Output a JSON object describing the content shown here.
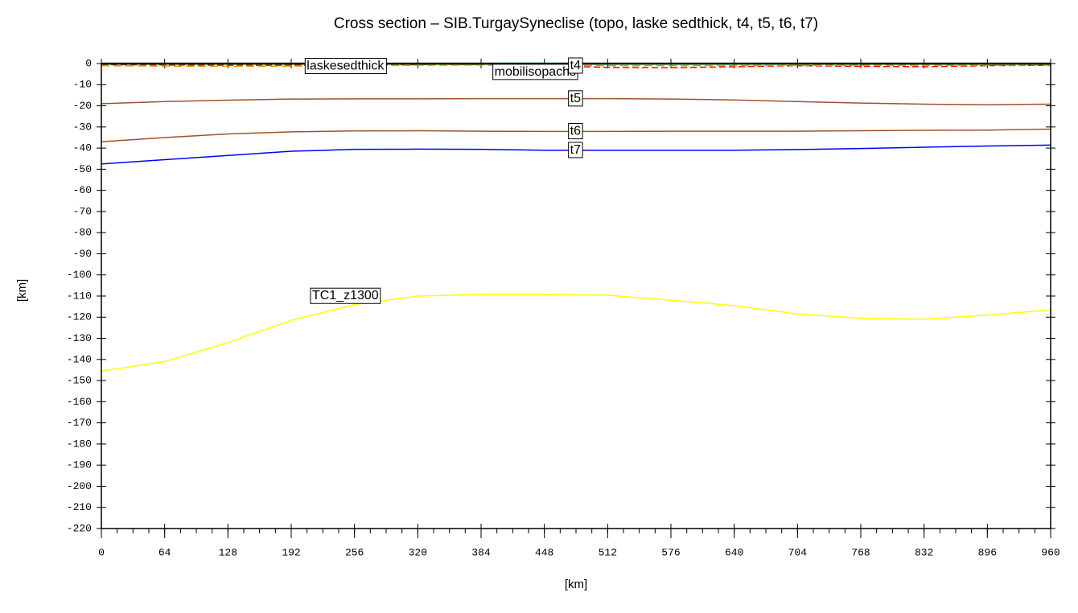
{
  "chart_data": {
    "type": "line",
    "title": "Cross section – SIB.TurgaySyneclise (topo, laske sedthick, t4, t5, t6, t7)",
    "xlabel": "[km]",
    "ylabel": "[km]",
    "x": [
      0,
      64,
      128,
      192,
      256,
      320,
      384,
      448,
      512,
      576,
      640,
      704,
      768,
      832,
      896,
      960
    ],
    "xlim": [
      0,
      960
    ],
    "ylim": [
      -220,
      0
    ],
    "xticks": [
      0,
      64,
      128,
      192,
      256,
      320,
      384,
      448,
      512,
      576,
      640,
      704,
      768,
      832,
      896,
      960
    ],
    "yticks": [
      0,
      -10,
      -20,
      -30,
      -40,
      -50,
      -60,
      -70,
      -80,
      -90,
      -100,
      -110,
      -120,
      -130,
      -140,
      -150,
      -160,
      -170,
      -180,
      -190,
      -200,
      -210,
      -220
    ],
    "series": [
      {
        "color": "#008000",
        "values": [
          0.2,
          0.2,
          0.2,
          0.2,
          0.2,
          0.2,
          0.2,
          0.2,
          0.2,
          0.2,
          0.2,
          0.2,
          0.2,
          0.2,
          0.2,
          0.2
        ]
      },
      {
        "name": "laskesedthick",
        "color": "#ff0000",
        "values": [
          -0.5,
          -0.7,
          -0.8,
          -0.8,
          -0.7,
          -0.5,
          -0.4,
          -1,
          -1.8,
          -2,
          -1.5,
          -1,
          -1.3,
          -1.5,
          -1,
          -0.8
        ]
      },
      {
        "name": "mobilisopachs",
        "color": "#ff8c00",
        "values": [
          -1,
          -1.2,
          -1.3,
          -1.2,
          -1,
          -0.8,
          -0.7,
          -0.8,
          -1,
          -1,
          -1,
          -0.9,
          -0.8,
          -0.8,
          -0.8,
          -0.7
        ]
      },
      {
        "name": "t4",
        "color": "#006400",
        "values": [
          -0.3,
          -0.3,
          -0.3,
          -0.3,
          -0.3,
          -0.3,
          -0.3,
          -0.3,
          -0.3,
          -0.3,
          -0.3,
          -0.3,
          -0.3,
          -0.3,
          -0.3,
          -0.3
        ]
      },
      {
        "name": "t5",
        "color": "#a0522d",
        "values": [
          -19,
          -18,
          -17.3,
          -16.8,
          -16.7,
          -16.7,
          -16.6,
          -16.6,
          -16.6,
          -16.8,
          -17.2,
          -18,
          -18.7,
          -19.2,
          -19.5,
          -19.2
        ]
      },
      {
        "name": "t6",
        "color": "#a0522d",
        "values": [
          -37,
          -35,
          -33.3,
          -32.3,
          -31.9,
          -31.8,
          -32,
          -32.1,
          -32.1,
          -32,
          -32,
          -32,
          -31.8,
          -31.6,
          -31.5,
          -31
        ]
      },
      {
        "name": "t7",
        "color": "#0000ff",
        "values": [
          -47.5,
          -45.5,
          -43.5,
          -41.5,
          -40.6,
          -40.5,
          -40.6,
          -41,
          -41,
          -41,
          -41,
          -40.7,
          -40.2,
          -39.6,
          -39,
          -38.6
        ]
      },
      {
        "name": "TC1_z1300",
        "color": "#ffff00",
        "values": [
          -145.5,
          -141,
          -132,
          -121.5,
          -114,
          -110,
          -109.3,
          -109.3,
          -109.6,
          -112,
          -114.5,
          -118.5,
          -120.5,
          -121,
          -119,
          -116.5
        ]
      }
    ]
  }
}
